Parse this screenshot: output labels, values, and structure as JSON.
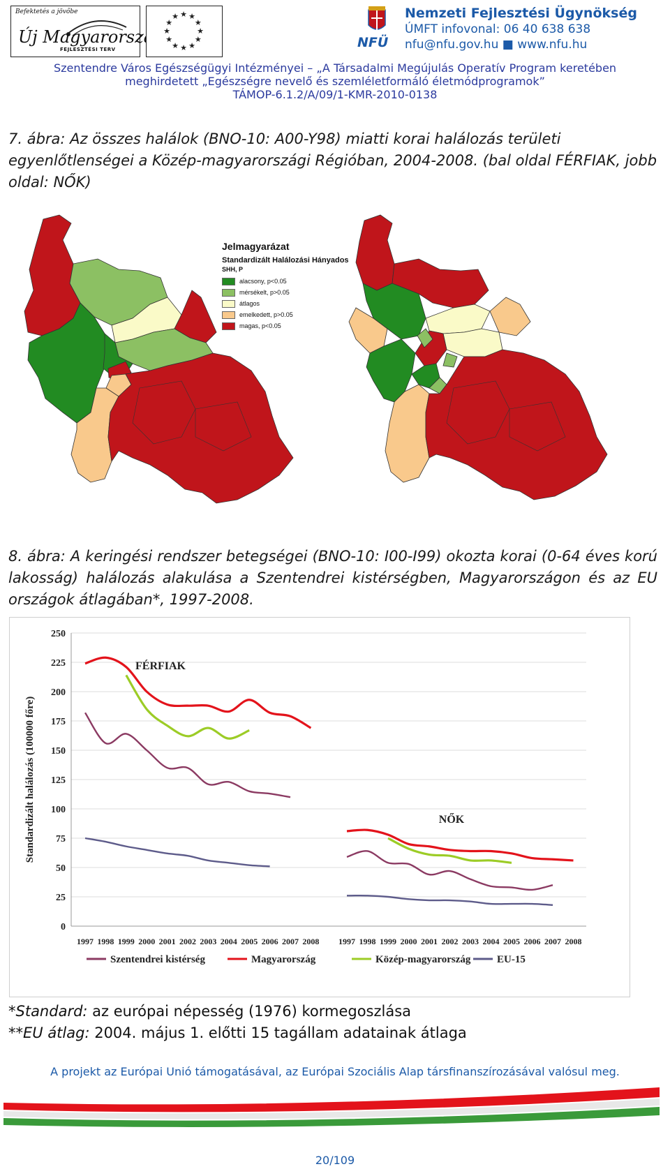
{
  "header": {
    "um_logo": {
      "tagline": "Befektetés a jövőbe",
      "title": "Új Magyarország",
      "subtitle": "FEJLESZTÉSI TERV"
    },
    "eu_flag_icon": "eu-stars-icon",
    "nfu": {
      "agency_name": "Nemzeti Fejlesztési Ügynökség",
      "phone_line": "ÚMFT infovonal: 06 40 638 638",
      "contact_line": "nfu@nfu.gov.hu  ■  www.nfu.hu",
      "abbr": "NFÜ"
    }
  },
  "project": {
    "line1": "Szentendre Város Egészségügyi Intézményei – „A Társadalmi Megújulás Operatív Program keretében",
    "line2": "meghirdetett „Egészségre nevelő és szemléletformáló életmódprogramok”",
    "line3": "TÁMOP-6.1.2/A/09/1-KMR-2010-0138"
  },
  "figure7": {
    "caption": "7. ábra: Az összes halálok (BNO-10: A00-Y98) miatti korai halálozás területi egyenlőtlenségei a Közép-magyarországi Régióban, 2004-2008. (bal oldal FÉRFIAK, jobb oldal: NŐK)",
    "legend": {
      "title": "Jelmagyarázat",
      "subtitle": "Standardizált Halálozási Hányados",
      "head": "SHH, P",
      "items": [
        {
          "label": "alacsony, p<0.05",
          "color": "#228b22"
        },
        {
          "label": "mérsékelt, p>0.05",
          "color": "#8cc063"
        },
        {
          "label": "átlagos",
          "color": "#fafac8"
        },
        {
          "label": "emelkedett, p>0.05",
          "color": "#f9c98c"
        },
        {
          "label": "magas, p<0.05",
          "color": "#c0151b"
        }
      ]
    }
  },
  "figure8": {
    "caption": "8. ábra: A keringési rendszer betegségei (BNO-10: I00-I99) okozta korai (0-64 éves korú lakosság) halálozás alakulása a Szentendrei kistérségben, Magyarországon és az EU országok átlagában*, 1997-2008."
  },
  "chart_data": {
    "type": "line",
    "ylabel": "Standardizált halálozás (100000 főre)",
    "ylim": [
      0,
      250
    ],
    "yticks": [
      0,
      25,
      50,
      75,
      100,
      125,
      150,
      175,
      200,
      225,
      250
    ],
    "grid": true,
    "legend_position": "bottom",
    "series_styles": [
      {
        "name": "Szentendrei kistérség",
        "color": "#8b3a62"
      },
      {
        "name": "Magyarország",
        "color": "#e3131b"
      },
      {
        "name": "Közép-magyarország",
        "color": "#9ccc26"
      },
      {
        "name": "EU-15",
        "color": "#5d5b8a"
      }
    ],
    "panels": [
      {
        "label": "FÉRFIAK",
        "x": [
          "1997",
          "1998",
          "1999",
          "2000",
          "2001",
          "2002",
          "2003",
          "2004",
          "2005",
          "2006",
          "2007",
          "2008"
        ],
        "series": [
          {
            "name": "Szentendrei kistérség",
            "values": [
              182,
              156,
              164,
              150,
              135,
              135,
              121,
              123,
              115,
              113,
              110,
              null
            ]
          },
          {
            "name": "Magyarország",
            "values": [
              224,
              229,
              221,
              200,
              189,
              188,
              188,
              183,
              193,
              182,
              179,
              169
            ]
          },
          {
            "name": "Közép-magyarország",
            "values": [
              null,
              null,
              214,
              185,
              171,
              162,
              169,
              160,
              167,
              null,
              null,
              null
            ]
          },
          {
            "name": "EU-15",
            "values": [
              75,
              72,
              68,
              65,
              62,
              60,
              56,
              54,
              52,
              51,
              null,
              null
            ]
          }
        ]
      },
      {
        "label": "NŐK",
        "x": [
          "1997",
          "1998",
          "1999",
          "2000",
          "2001",
          "2002",
          "2003",
          "2004",
          "2005",
          "2006",
          "2007",
          "2008"
        ],
        "series": [
          {
            "name": "Szentendrei kistérség",
            "values": [
              59,
              64,
              54,
              53,
              44,
              47,
              40,
              34,
              33,
              31,
              35,
              null
            ]
          },
          {
            "name": "Magyarország",
            "values": [
              81,
              82,
              78,
              70,
              68,
              65,
              64,
              64,
              62,
              58,
              57,
              56
            ]
          },
          {
            "name": "Közép-magyarország",
            "values": [
              null,
              null,
              75,
              66,
              61,
              60,
              56,
              56,
              54,
              null,
              null,
              null
            ]
          },
          {
            "name": "EU-15",
            "values": [
              26,
              26,
              25,
              23,
              22,
              22,
              21,
              19,
              19,
              19,
              18,
              null
            ]
          }
        ]
      }
    ]
  },
  "notes": {
    "n1_prefix": "*Standard:",
    "n1_text": " az európai népesség (1976) kormegoszlása",
    "n2_prefix": "**EU átlag:",
    "n2_text": " 2004. május 1. előtti 15 tagállam adatainak átlaga"
  },
  "footer": {
    "text": "A projekt az Európai Unió támogatásával, az Európai Szociális Alap társfinanszírozásával valósul meg.",
    "page": "20/109"
  }
}
